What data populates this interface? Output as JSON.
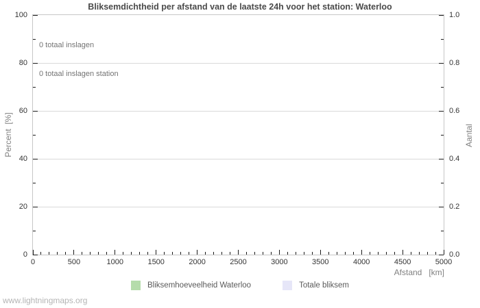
{
  "watermark": "www.lightningmaps.org",
  "colors": {
    "background": "#ffffff",
    "frame": "#c6c6c6",
    "grid": "#d9d9d9",
    "tick": "#1a1a1a",
    "title_text": "#4a4a4a",
    "tick_label_text": "#333333",
    "axis_label_text": "#808080",
    "annotation_text": "#737373",
    "legend_label_text": "#595959",
    "watermark_text": "#b4b4b4",
    "series_green": "#b5dcab",
    "series_lavender": "#e6e6f8"
  },
  "chart_data": {
    "type": "bar",
    "title": "Bliksemdichtheid per afstand van de laatste 24h voor het station: Waterloo",
    "annotations": [
      "0 totaal inslagen",
      "0 totaal inslagen station"
    ],
    "x_axis": {
      "label": "Afstand   [km]",
      "min": 0,
      "max": 5000,
      "minor_step": 100,
      "ticks": [
        {
          "v": 0,
          "label": "0"
        },
        {
          "v": 500,
          "label": "500"
        },
        {
          "v": 1000,
          "label": "1000"
        },
        {
          "v": 1500,
          "label": "1500"
        },
        {
          "v": 2000,
          "label": "2000"
        },
        {
          "v": 2500,
          "label": "2500"
        },
        {
          "v": 3000,
          "label": "3000"
        },
        {
          "v": 3500,
          "label": "3500"
        },
        {
          "v": 4000,
          "label": "4000"
        },
        {
          "v": 4500,
          "label": "4500"
        },
        {
          "v": 5000,
          "label": "5000"
        }
      ]
    },
    "y_axis_left": {
      "label": "Percent  [%]",
      "min": 0,
      "max": 100,
      "minor_step": 10,
      "grid": true,
      "ticks": [
        {
          "v": 0,
          "label": "0"
        },
        {
          "v": 20,
          "label": "20"
        },
        {
          "v": 40,
          "label": "40"
        },
        {
          "v": 60,
          "label": "60"
        },
        {
          "v": 80,
          "label": "80"
        },
        {
          "v": 100,
          "label": "100"
        }
      ]
    },
    "y_axis_right": {
      "label": "Aantal",
      "min": 0,
      "max": 1,
      "minor_step": 0.1,
      "grid": false,
      "ticks": [
        {
          "v": 0,
          "label": "0.0"
        },
        {
          "v": 0.2,
          "label": "0.2"
        },
        {
          "v": 0.4,
          "label": "0.4"
        },
        {
          "v": 0.6,
          "label": "0.6"
        },
        {
          "v": 0.8,
          "label": "0.8"
        },
        {
          "v": 1.0,
          "label": "1.0"
        }
      ]
    },
    "series": [
      {
        "name": "Bliksemhoeveelheid Waterloo",
        "color": "#b5dcab",
        "values": []
      },
      {
        "name": "Totale bliksem",
        "color": "#e6e6f8",
        "values": []
      }
    ],
    "legend_position": "bottom-center",
    "grid": "horizontal-major-only"
  }
}
